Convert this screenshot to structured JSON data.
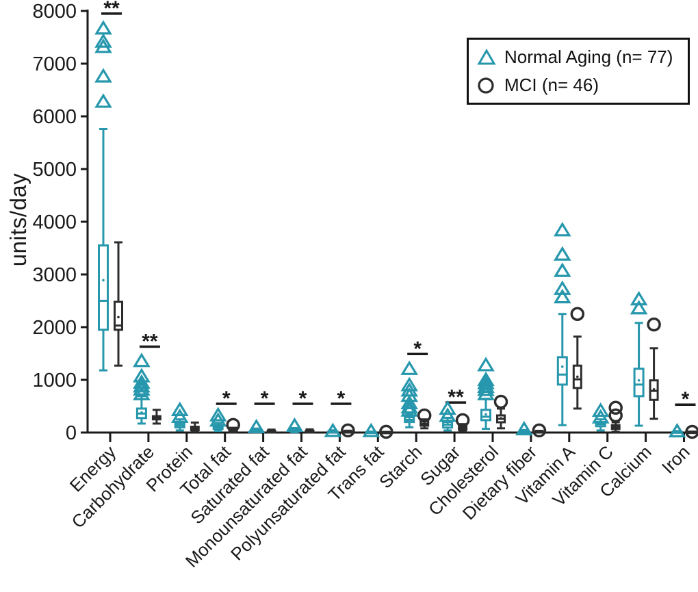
{
  "page": {
    "background": "#ffffff",
    "text_color": "#1a1a1a"
  },
  "chart_data": {
    "type": "boxplot",
    "title": "",
    "xlabel": "",
    "ylabel": "units/day",
    "ylim": [
      0,
      8000
    ],
    "ytick_step": 1000,
    "yticks": [
      0,
      1000,
      2000,
      3000,
      4000,
      5000,
      6000,
      7000,
      8000
    ],
    "grid": false,
    "legend_position": "top-right",
    "categories": [
      "Energy",
      "Carbohydrate",
      "Protein",
      "Total fat",
      "Saturated fat",
      "Monounsaturated fat",
      "Polyunsaturated fat",
      "Trans fat",
      "Starch",
      "Sugar",
      "Cholesterol",
      "Dietary fiber",
      "Vitamin A",
      "Vitamin C",
      "Calcium",
      "Iron"
    ],
    "series": [
      {
        "name": "Normal Aging (n= 77)",
        "marker": "triangle",
        "color": "#2697ac",
        "boxes": [
          {
            "low": 1180,
            "q1": 1950,
            "med": 2500,
            "q3": 3550,
            "high": 5760,
            "mean": 2890,
            "out": [
              7670,
              7420,
              7320,
              6760,
              6280
            ]
          },
          {
            "low": 170,
            "q1": 275,
            "med": 360,
            "q3": 455,
            "high": 690,
            "mean": 380,
            "out": [
              1360,
              1070,
              950,
              880,
              820,
              730
            ]
          },
          {
            "low": 40,
            "q1": 100,
            "med": 140,
            "q3": 180,
            "high": 250,
            "mean": 150,
            "out": [
              430,
              300
            ]
          },
          {
            "low": 30,
            "q1": 70,
            "med": 100,
            "q3": 140,
            "high": 180,
            "mean": 105,
            "out": [
              330,
              230
            ]
          },
          {
            "low": 5,
            "q1": 20,
            "med": 32,
            "q3": 48,
            "high": 75,
            "mean": 35,
            "out": [
              105
            ]
          },
          {
            "low": 5,
            "q1": 22,
            "med": 35,
            "q3": 55,
            "high": 85,
            "mean": 40,
            "out": [
              130
            ]
          },
          {
            "low": 2,
            "q1": 8,
            "med": 14,
            "q3": 24,
            "high": 42,
            "mean": 16,
            "out": [
              32
            ]
          },
          {
            "low": 0,
            "q1": 2,
            "med": 5,
            "q3": 10,
            "high": 18,
            "mean": 6,
            "out": [
              30
            ]
          },
          {
            "low": 100,
            "q1": 200,
            "med": 240,
            "q3": 290,
            "high": 355,
            "mean": 250,
            "out": [
              1210,
              900,
              800,
              700,
              560,
              480,
              420
            ]
          },
          {
            "low": 40,
            "q1": 95,
            "med": 150,
            "q3": 200,
            "high": 280,
            "mean": 160,
            "out": [
              455,
              320
            ]
          },
          {
            "low": 70,
            "q1": 235,
            "med": 300,
            "q3": 430,
            "high": 640,
            "mean": 345,
            "out": [
              1280,
              1000,
              940,
              870,
              810,
              730
            ]
          },
          {
            "low": 2,
            "q1": 8,
            "med": 16,
            "q3": 28,
            "high": 48,
            "mean": 18,
            "out": [
              65
            ]
          },
          {
            "low": 140,
            "q1": 910,
            "med": 1100,
            "q3": 1430,
            "high": 2250,
            "mean": 1250,
            "out": [
              3840,
              3380,
              3070,
              2730,
              2570
            ]
          },
          {
            "low": 40,
            "q1": 120,
            "med": 160,
            "q3": 200,
            "high": 250,
            "mean": 165,
            "out": [
              415,
              290
            ]
          },
          {
            "low": 130,
            "q1": 690,
            "med": 910,
            "q3": 1210,
            "high": 2080,
            "mean": 990,
            "out": [
              2530,
              2360
            ]
          },
          {
            "low": 1,
            "q1": 5,
            "med": 9,
            "q3": 15,
            "high": 28,
            "mean": 10,
            "out": [
              26
            ]
          }
        ]
      },
      {
        "name": "MCI (n= 46)",
        "marker": "circle",
        "color": "#2d2d2d",
        "boxes": [
          {
            "low": 1270,
            "q1": 1950,
            "med": 2030,
            "q3": 2480,
            "high": 3610,
            "mean": 2190,
            "out": []
          },
          {
            "low": 170,
            "q1": 250,
            "med": 275,
            "q3": 310,
            "high": 430,
            "mean": 285,
            "out": []
          },
          {
            "low": 20,
            "q1": 45,
            "med": 75,
            "q3": 110,
            "high": 190,
            "mean": 80,
            "out": []
          },
          {
            "low": 5,
            "q1": 18,
            "med": 35,
            "q3": 58,
            "high": 90,
            "mean": 40,
            "out": [
              145
            ]
          },
          {
            "low": 2,
            "q1": 8,
            "med": 18,
            "q3": 32,
            "high": 55,
            "mean": 20,
            "out": []
          },
          {
            "low": 2,
            "q1": 10,
            "med": 20,
            "q3": 35,
            "high": 60,
            "mean": 22,
            "out": []
          },
          {
            "low": 1,
            "q1": 6,
            "med": 12,
            "q3": 20,
            "high": 35,
            "mean": 13,
            "out": [
              40
            ]
          },
          {
            "low": 0,
            "q1": 1,
            "med": 3,
            "q3": 7,
            "high": 12,
            "mean": 4,
            "out": [
              14
            ]
          },
          {
            "low": 80,
            "q1": 130,
            "med": 165,
            "q3": 210,
            "high": 250,
            "mean": 175,
            "out": [
              325
            ]
          },
          {
            "low": 25,
            "q1": 55,
            "med": 85,
            "q3": 115,
            "high": 160,
            "mean": 90,
            "out": [
              235
            ]
          },
          {
            "low": 80,
            "q1": 195,
            "med": 260,
            "q3": 325,
            "high": 455,
            "mean": 270,
            "out": [
              585
            ]
          },
          {
            "low": 1,
            "q1": 5,
            "med": 11,
            "q3": 19,
            "high": 33,
            "mean": 12,
            "out": [
              40
            ]
          },
          {
            "low": 455,
            "q1": 845,
            "med": 1010,
            "q3": 1270,
            "high": 1820,
            "mean": 1060,
            "out": [
              2250
            ]
          },
          {
            "low": 15,
            "q1": 70,
            "med": 105,
            "q3": 140,
            "high": 195,
            "mean": 110,
            "out": [
              470,
              325
            ]
          },
          {
            "low": 260,
            "q1": 620,
            "med": 790,
            "q3": 990,
            "high": 1600,
            "mean": 820,
            "out": [
              2050
            ]
          },
          {
            "low": 0,
            "q1": 3,
            "med": 6,
            "q3": 11,
            "high": 18,
            "mean": 7,
            "out": [
              13
            ]
          }
        ]
      }
    ],
    "significance": [
      {
        "category": "Energy",
        "label": "**",
        "y": 7950
      },
      {
        "category": "Carbohydrate",
        "label": "**",
        "y": 1630
      },
      {
        "category": "Total fat",
        "label": "*",
        "y": 545
      },
      {
        "category": "Saturated fat",
        "label": "*",
        "y": 545
      },
      {
        "category": "Monounsaturated fat",
        "label": "*",
        "y": 545
      },
      {
        "category": "Polyunsaturated fat",
        "label": "*",
        "y": 545
      },
      {
        "category": "Starch",
        "label": "*",
        "y": 1490
      },
      {
        "category": "Sugar",
        "label": "**",
        "y": 570
      },
      {
        "category": "Iron",
        "label": "*",
        "y": 530
      }
    ]
  }
}
